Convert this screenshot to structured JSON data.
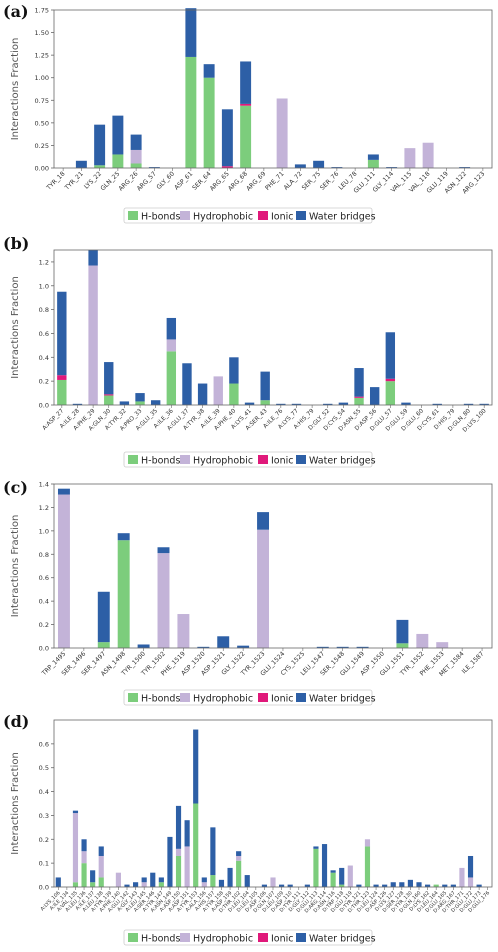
{
  "colors": {
    "H-bonds": "#7ccd7c",
    "Hydrophobic": "#c3b3d8",
    "Ionic": "#e0197a",
    "Water bridges": "#2d5fa6",
    "axis": "#666666",
    "text": "#333333"
  },
  "chart_data": [
    {
      "panel": "(a)",
      "type": "bar",
      "stacked": true,
      "ylabel": "Interactions Fraction",
      "ylim": [
        0,
        1.75
      ],
      "yticks": [
        "0.00",
        "0.25",
        "0.50",
        "0.75",
        "1.00",
        "1.25",
        "1.50",
        "1.75"
      ],
      "legend": [
        "H-bonds",
        "Hydrophobic",
        "Ionic",
        "Water bridges"
      ],
      "legend_position": "bottom",
      "categories": [
        "TYR_18",
        "TYR_21",
        "LYS_22",
        "GLN_25",
        "ARG_26",
        "ARG_57",
        "GLY_60",
        "ASP_61",
        "SER_64",
        "ARG_65",
        "ARG_68",
        "ARG_69",
        "PHE_71",
        "ALA_72",
        "SER_75",
        "SER_76",
        "LEU_78",
        "GLU_111",
        "GLY_114",
        "VAL_115",
        "VAL_118",
        "GLU_119",
        "ASN_122",
        "ARG_123"
      ],
      "series": [
        {
          "name": "H-bonds",
          "values": [
            0,
            0,
            0.03,
            0.15,
            0.05,
            0,
            0,
            1.23,
            1.0,
            0,
            0.69,
            0,
            0,
            0,
            0,
            0,
            0,
            0.09,
            0,
            0,
            0,
            0,
            0,
            0
          ]
        },
        {
          "name": "Hydrophobic",
          "values": [
            0,
            0,
            0,
            0,
            0.15,
            0,
            0,
            0,
            0,
            0,
            0,
            0,
            0.77,
            0,
            0,
            0,
            0,
            0,
            0,
            0.22,
            0.28,
            0,
            0,
            0
          ]
        },
        {
          "name": "Ionic",
          "values": [
            0,
            0,
            0,
            0,
            0,
            0,
            0,
            0,
            0,
            0.02,
            0.02,
            0,
            0,
            0,
            0,
            0,
            0,
            0,
            0,
            0,
            0,
            0,
            0,
            0
          ]
        },
        {
          "name": "Water bridges",
          "values": [
            0,
            0.08,
            0.45,
            0.43,
            0.17,
            0.01,
            0,
            0.54,
            0.15,
            0.63,
            0.47,
            0,
            0,
            0.04,
            0.08,
            0.01,
            0,
            0.06,
            0.01,
            0,
            0,
            0,
            0.01,
            0
          ]
        }
      ]
    },
    {
      "panel": "(b)",
      "type": "bar",
      "stacked": true,
      "ylabel": "Interactions Fraction",
      "ylim": [
        0,
        1.3
      ],
      "yticks": [
        "0.0",
        "0.2",
        "0.4",
        "0.6",
        "0.8",
        "1.0",
        "1.2"
      ],
      "legend": [
        "H-bonds",
        "Hydrophobic",
        "Ionic",
        "Water bridges"
      ],
      "legend_position": "bottom",
      "categories": [
        "A:ASP_27",
        "A:ILE_28",
        "A:PHE_29",
        "A:GLN_30",
        "A:TYR_32",
        "A:PRO_33",
        "A:GLU_35",
        "A:ILE_36",
        "A:GLU_37",
        "A:TYR_38",
        "A:ILE_39",
        "A:PHE_40",
        "A:LYS_41",
        "A:SER_43",
        "A:ILE_76",
        "A:LYS_77",
        "A:HIS_79",
        "D:GLY_52",
        "D:CYS_54",
        "D:ASN_55",
        "D:ASP_56",
        "D:GLU_57",
        "D:GLU_59",
        "D:GLU_60",
        "D:CYS_61",
        "D:HIS_79",
        "D:GLN_80",
        "D:LYS_100"
      ],
      "series": [
        {
          "name": "H-bonds",
          "values": [
            0.21,
            0,
            0,
            0.08,
            0,
            0.03,
            0,
            0.45,
            0,
            0,
            0,
            0.18,
            0,
            0.04,
            0,
            0,
            0,
            0,
            0,
            0.06,
            0,
            0.2,
            0,
            0,
            0,
            0,
            0,
            0
          ]
        },
        {
          "name": "Hydrophobic",
          "values": [
            0,
            0,
            1.17,
            0,
            0,
            0,
            0,
            0.1,
            0,
            0,
            0.24,
            0,
            0,
            0,
            0,
            0,
            0,
            0,
            0,
            0,
            0,
            0,
            0,
            0,
            0,
            0,
            0,
            0
          ]
        },
        {
          "name": "Ionic",
          "values": [
            0.04,
            0,
            0,
            0.01,
            0,
            0,
            0,
            0,
            0,
            0,
            0,
            0,
            0,
            0,
            0,
            0,
            0,
            0,
            0,
            0.01,
            0,
            0.02,
            0,
            0,
            0,
            0,
            0,
            0
          ]
        },
        {
          "name": "Water bridges",
          "values": [
            0.7,
            0.01,
            0.13,
            0.27,
            0.03,
            0.07,
            0.04,
            0.18,
            0.35,
            0.18,
            0,
            0.22,
            0.02,
            0.24,
            0.01,
            0.01,
            0,
            0.01,
            0.02,
            0.24,
            0.15,
            0.39,
            0.02,
            0,
            0.01,
            0,
            0.01,
            0.01
          ]
        }
      ]
    },
    {
      "panel": "(c)",
      "type": "bar",
      "stacked": true,
      "ylabel": "Interactions Fraction",
      "ylim": [
        0,
        1.4
      ],
      "yticks": [
        "0.0",
        "0.2",
        "0.4",
        "0.6",
        "0.8",
        "1.0",
        "1.2",
        "1.4"
      ],
      "legend": [
        "H-bonds",
        "Hydrophobic",
        "Ionic",
        "Water bridges"
      ],
      "legend_position": "bottom",
      "categories": [
        "TRP_1495",
        "SER_1496",
        "SER_1497",
        "ASN_1498",
        "TYR_1500",
        "TYR_1502",
        "PHE_1519",
        "ASP_1520",
        "ASP_1521",
        "GLY_1522",
        "TYR_1523",
        "GLU_1524",
        "CYS_1525",
        "LEU_1547",
        "SER_1548",
        "GLU_1549",
        "ASP_1550",
        "GLU_1551",
        "TYR_1552",
        "PHE_1553",
        "MET_1584",
        "ILE_1587"
      ],
      "series": [
        {
          "name": "H-bonds",
          "values": [
            0,
            0,
            0.05,
            0.92,
            0,
            0,
            0,
            0,
            0,
            0,
            0,
            0,
            0,
            0,
            0,
            0,
            0,
            0.04,
            0,
            0,
            0,
            0
          ]
        },
        {
          "name": "Hydrophobic",
          "values": [
            1.31,
            0,
            0,
            0,
            0,
            0.81,
            0.29,
            0,
            0,
            0,
            1.01,
            0,
            0,
            0,
            0,
            0,
            0,
            0,
            0.12,
            0.05,
            0,
            0
          ]
        },
        {
          "name": "Ionic",
          "values": [
            0,
            0,
            0,
            0,
            0,
            0,
            0,
            0,
            0,
            0,
            0,
            0,
            0,
            0,
            0,
            0,
            0,
            0,
            0,
            0,
            0,
            0
          ]
        },
        {
          "name": "Water bridges",
          "values": [
            0.05,
            0,
            0.43,
            0.06,
            0.03,
            0.05,
            0,
            0.01,
            0.1,
            0.02,
            0.15,
            0,
            0,
            0.01,
            0.01,
            0.01,
            0,
            0.2,
            0,
            0,
            0,
            0
          ]
        }
      ]
    },
    {
      "panel": "(d)",
      "type": "bar",
      "stacked": true,
      "ylabel": "Interactions Fraction",
      "ylim": [
        0,
        0.7
      ],
      "yticks": [
        "0.0",
        "0.1",
        "0.2",
        "0.3",
        "0.4",
        "0.5",
        "0.6"
      ],
      "legend": [
        "H-bonds",
        "Hydrophobic",
        "Ionic",
        "Water bridges"
      ],
      "legend_position": "bottom",
      "categories": [
        "A:LYS_106",
        "A:ILE_134",
        "A:VAL_135",
        "A:LEU_136",
        "A:ILE_137",
        "A:LEU_138",
        "A:TYR_139",
        "A:PHE_140",
        "A:GLU_142",
        "A:GLY_143",
        "A:LEU_145",
        "A:SER_146",
        "A:TYR_147",
        "A:ASN_149",
        "A:ASP_150",
        "A:ASP_151",
        "A:TYR_153",
        "A:ALA_156",
        "A:HIS_157",
        "A:TYR_158",
        "A:ASP_159",
        "D:THR_102",
        "D:LEU_104",
        "D:LEU_105",
        "D:ASP_106",
        "D:GLN_107",
        "D:LEU_109",
        "D:ASP_110",
        "D:TYR_111",
        "D:GLY_112",
        "D:GLU_113",
        "D:ARG_114",
        "D:ASN_116",
        "D:TRP_118",
        "D:GLU_119",
        "D:TYR_121",
        "D:THR_123",
        "D:LEU_124",
        "D:ASP_126",
        "D:LYS_127",
        "D:SER_128",
        "D:TYR_130",
        "D:GLN_160",
        "D:LYS_162",
        "D:LEU_164",
        "D:GLU_165",
        "D:ARG_167",
        "D:THR_171",
        "D:GLU_172",
        "D:GLU_173",
        "D:GLU_176"
      ],
      "series": [
        {
          "name": "H-bonds",
          "values": [
            0,
            0,
            0.02,
            0.1,
            0.02,
            0.04,
            0,
            0,
            0,
            0,
            0,
            0,
            0.02,
            0,
            0.13,
            0,
            0.35,
            0,
            0.05,
            0,
            0,
            0.11,
            0,
            0,
            0,
            0,
            0,
            0,
            0,
            0,
            0.16,
            0,
            0.06,
            0.01,
            0,
            0,
            0.17,
            0,
            0,
            0,
            0,
            0,
            0,
            0,
            0.01,
            0,
            0,
            0,
            0,
            0,
            0
          ]
        },
        {
          "name": "Hydrophobic",
          "values": [
            0,
            0,
            0.29,
            0.05,
            0,
            0.09,
            0,
            0.06,
            0,
            0,
            0.02,
            0,
            0,
            0,
            0.03,
            0.17,
            0,
            0.02,
            0,
            0,
            0,
            0.02,
            0,
            0,
            0,
            0.04,
            0,
            0,
            0,
            0,
            0,
            0,
            0,
            0,
            0.09,
            0,
            0.03,
            0,
            0,
            0,
            0,
            0,
            0,
            0,
            0,
            0,
            0,
            0.08,
            0.04,
            0,
            0
          ]
        },
        {
          "name": "Ionic",
          "values": [
            0,
            0,
            0,
            0,
            0,
            0,
            0,
            0,
            0,
            0,
            0,
            0,
            0,
            0,
            0,
            0,
            0,
            0,
            0,
            0,
            0,
            0,
            0,
            0,
            0,
            0,
            0,
            0,
            0,
            0,
            0,
            0,
            0,
            0,
            0,
            0,
            0,
            0,
            0,
            0,
            0,
            0,
            0,
            0,
            0,
            0,
            0,
            0,
            0,
            0,
            0
          ]
        },
        {
          "name": "Water bridges",
          "values": [
            0.04,
            0,
            0.01,
            0.05,
            0.05,
            0.04,
            0,
            0,
            0.01,
            0.02,
            0.02,
            0.06,
            0.02,
            0.21,
            0.18,
            0.11,
            0.31,
            0.02,
            0.2,
            0.03,
            0.08,
            0.02,
            0.05,
            0,
            0.01,
            0,
            0.01,
            0.01,
            0,
            0.01,
            0.01,
            0.18,
            0.01,
            0.07,
            0,
            0.01,
            0,
            0.01,
            0.01,
            0.02,
            0.02,
            0.03,
            0.02,
            0.01,
            0,
            0.01,
            0.01,
            0,
            0.09,
            0.01,
            0
          ]
        }
      ]
    }
  ]
}
